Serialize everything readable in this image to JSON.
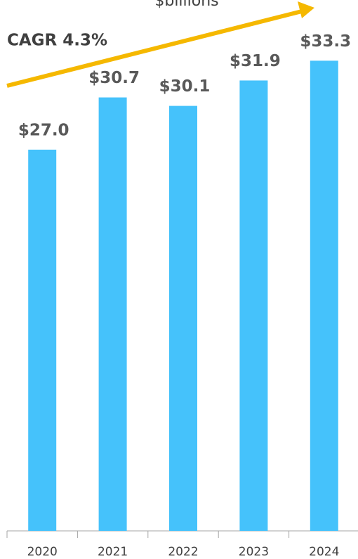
{
  "chart_data": {
    "type": "bar",
    "title": "$billions",
    "annotation": "CAGR 4.3%",
    "categories": [
      "2020",
      "2021",
      "2022",
      "2023",
      "2024"
    ],
    "values": [
      27.0,
      30.7,
      30.1,
      31.9,
      33.3
    ],
    "value_labels": [
      "$27.0",
      "$30.7",
      "$30.1",
      "$31.9",
      "$33.3"
    ],
    "color": "#45c2fb",
    "ylim": [
      0,
      37.6
    ]
  }
}
